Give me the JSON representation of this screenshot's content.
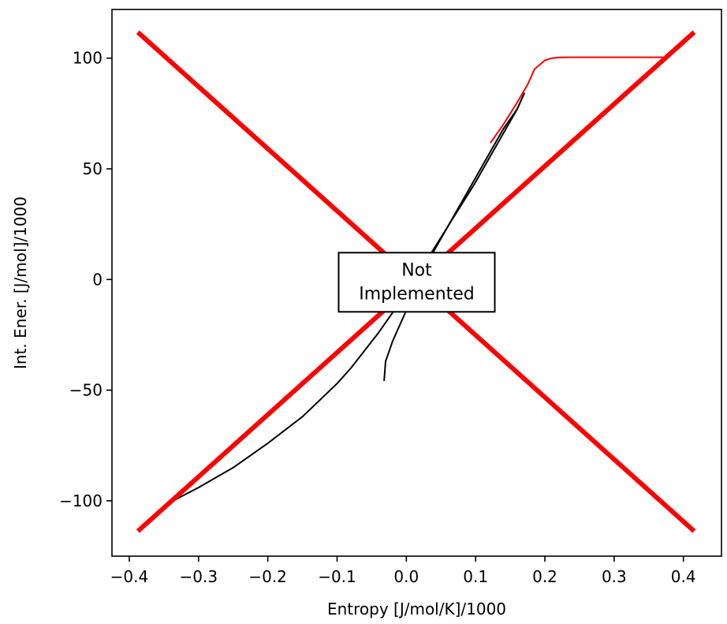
{
  "chart_data": {
    "type": "line",
    "xlabel": "Entropy [J/mol/K]/1000",
    "ylabel": "Int. Ener. [J/mol]/1000",
    "xlim": [
      -0.425,
      0.455
    ],
    "ylim": [
      -125,
      122
    ],
    "xticks": [
      -0.4,
      -0.3,
      -0.2,
      -0.1,
      0.0,
      0.1,
      0.2,
      0.3,
      0.4
    ],
    "xtick_labels": [
      "−0.4",
      "−0.3",
      "−0.2",
      "−0.1",
      "0.0",
      "0.1",
      "0.2",
      "0.3",
      "0.4"
    ],
    "yticks": [
      100,
      50,
      0,
      -50,
      -100
    ],
    "ytick_labels": [
      "100",
      "50",
      "0",
      "−50",
      "−100"
    ],
    "grid": false,
    "annotation": {
      "lines": [
        "Not",
        "Implemented"
      ],
      "x": 0.015,
      "y": 0
    },
    "series": [
      {
        "color": "#000000",
        "width": 2,
        "x": [
          -0.032,
          -0.03,
          -0.02,
          -0.01,
          0.0,
          0.012,
          0.025,
          0.04,
          0.06,
          0.08,
          0.1,
          0.12,
          0.14,
          0.16,
          0.17
        ],
        "y": [
          -45.5,
          -37,
          -28,
          -21,
          -14,
          -7,
          2,
          13,
          24,
          35,
          46,
          57,
          68,
          77,
          84
        ]
      },
      {
        "color": "#000000",
        "width": 2,
        "x": [
          0.17,
          0.16,
          0.14,
          0.12,
          0.1,
          0.08,
          0.06,
          0.04,
          0.02,
          0.0,
          -0.02,
          -0.04,
          -0.06,
          -0.08,
          -0.1,
          -0.15,
          -0.2,
          -0.25,
          -0.3,
          -0.34
        ],
        "y": [
          84,
          77,
          66,
          55,
          44,
          34,
          24,
          14,
          4,
          -6,
          -15,
          -24,
          -32,
          -40,
          -47,
          -62,
          -74,
          -85,
          -94,
          -100.5
        ]
      },
      {
        "color": "#ff0000",
        "width": 2,
        "x": [
          0.122,
          0.14,
          0.16,
          0.175,
          0.185,
          0.2,
          0.21,
          0.22,
          0.235,
          0.26,
          0.3,
          0.37
        ],
        "y": [
          62,
          70,
          80,
          88,
          95,
          99,
          100,
          100.3,
          100.4,
          100.4,
          100.4,
          100.4
        ]
      },
      {
        "color": "#ff0000",
        "width": 6,
        "x": [
          -0.385,
          0.413
        ],
        "y": [
          -113,
          111
        ]
      },
      {
        "color": "#ff0000",
        "width": 6,
        "x": [
          -0.385,
          0.413
        ],
        "y": [
          111,
          -113
        ]
      }
    ]
  }
}
